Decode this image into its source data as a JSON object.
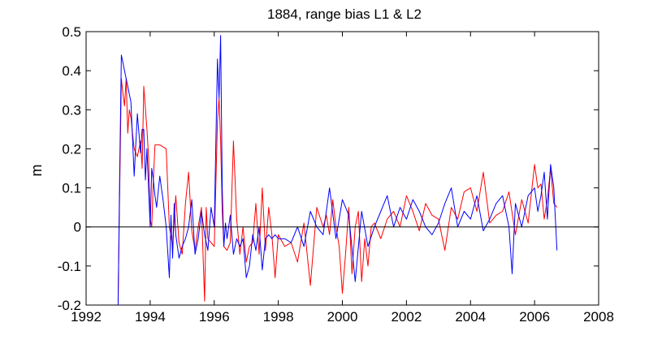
{
  "chart_data": {
    "type": "line",
    "title": "1884, range bias L1 & L2",
    "xlabel": "",
    "ylabel": "m",
    "xlim": [
      1992,
      2008
    ],
    "ylim": [
      -0.2,
      0.5
    ],
    "x_ticks": [
      "1992",
      "1994",
      "1996",
      "1998",
      "2000",
      "2002",
      "2004",
      "2006",
      "2008"
    ],
    "y_ticks": [
      "-0.2",
      "-0.1",
      "0",
      "0.1",
      "0.2",
      "0.3",
      "0.4",
      "0.5"
    ],
    "grid": false,
    "legend": "none",
    "reference_line": 0,
    "series": [
      {
        "color": "#ff0000",
        "x": [
          1993.0,
          1993.05,
          1993.1,
          1993.15,
          1993.2,
          1993.25,
          1993.3,
          1993.35,
          1993.4,
          1993.5,
          1993.6,
          1993.7,
          1993.75,
          1993.8,
          1993.9,
          1993.95,
          1994.0,
          1994.05,
          1994.1,
          1994.15,
          1994.2,
          1994.3,
          1994.5,
          1994.6,
          1994.7,
          1994.8,
          1994.9,
          1995.0,
          1995.1,
          1995.2,
          1995.3,
          1995.4,
          1995.5,
          1995.6,
          1995.7,
          1995.75,
          1995.8,
          1995.9,
          1996.0,
          1996.1,
          1996.15,
          1996.2,
          1996.25,
          1996.3,
          1996.4,
          1996.5,
          1996.6,
          1996.7,
          1996.8,
          1996.9,
          1997.0,
          1997.1,
          1997.2,
          1997.3,
          1997.4,
          1997.5,
          1997.6,
          1997.7,
          1997.8,
          1997.9,
          1998.0,
          1998.2,
          1998.4,
          1998.6,
          1998.8,
          1999.0,
          1999.2,
          1999.4,
          1999.5,
          1999.6,
          1999.7,
          1999.8,
          1999.9,
          2000.0,
          2000.1,
          2000.2,
          2000.3,
          2000.4,
          2000.5,
          2000.6,
          2000.7,
          2000.8,
          2000.9,
          2001.0,
          2001.2,
          2001.4,
          2001.6,
          2001.8,
          2002.0,
          2002.2,
          2002.4,
          2002.6,
          2002.8,
          2003.0,
          2003.2,
          2003.4,
          2003.6,
          2003.8,
          2004.0,
          2004.2,
          2004.4,
          2004.6,
          2004.8,
          2005.0,
          2005.2,
          2005.4,
          2005.6,
          2005.8,
          2006.0,
          2006.1,
          2006.2,
          2006.3,
          2006.4,
          2006.5,
          2006.6,
          2006.7
        ],
        "y": [
          -0.19,
          0.1,
          0.38,
          0.34,
          0.31,
          0.38,
          0.24,
          0.3,
          0.28,
          0.2,
          0.18,
          0.22,
          0.15,
          0.36,
          0.25,
          0.18,
          0.02,
          0.0,
          0.12,
          0.21,
          0.21,
          0.21,
          0.2,
          0.0,
          -0.05,
          0.08,
          -0.04,
          -0.07,
          0.06,
          0.14,
          -0.01,
          -0.06,
          0.0,
          0.05,
          -0.19,
          0.05,
          -0.03,
          -0.04,
          -0.05,
          0.27,
          0.33,
          0.22,
          0.04,
          -0.05,
          -0.06,
          -0.04,
          0.22,
          0.02,
          -0.07,
          0.0,
          -0.09,
          -0.05,
          -0.04,
          0.06,
          -0.07,
          0.1,
          -0.06,
          0.05,
          -0.02,
          -0.13,
          -0.02,
          -0.05,
          -0.04,
          -0.09,
          0.01,
          -0.15,
          0.05,
          0.0,
          0.03,
          -0.02,
          0.07,
          0.0,
          -0.05,
          -0.17,
          -0.07,
          0.05,
          -0.12,
          0.0,
          0.04,
          -0.14,
          -0.03,
          -0.1,
          0.0,
          0.01,
          -0.03,
          0.02,
          0.04,
          0.0,
          0.08,
          0.04,
          -0.01,
          0.06,
          0.03,
          0.02,
          -0.06,
          0.05,
          0.02,
          0.09,
          0.1,
          0.04,
          0.14,
          0.01,
          0.03,
          0.04,
          0.09,
          -0.02,
          0.07,
          0.01,
          0.16,
          0.1,
          0.11,
          0.02,
          0.07,
          0.15,
          0.06,
          0.05
        ]
      },
      {
        "color": "#0000ff",
        "x": [
          1993.0,
          1993.05,
          1993.1,
          1993.15,
          1993.2,
          1993.25,
          1993.3,
          1993.35,
          1993.4,
          1993.5,
          1993.6,
          1993.7,
          1993.75,
          1993.8,
          1993.85,
          1993.9,
          1993.95,
          1994.0,
          1994.05,
          1994.1,
          1994.15,
          1994.2,
          1994.3,
          1994.4,
          1994.5,
          1994.6,
          1994.65,
          1994.7,
          1994.75,
          1994.8,
          1994.9,
          1995.0,
          1995.1,
          1995.2,
          1995.3,
          1995.4,
          1995.5,
          1995.6,
          1995.7,
          1995.8,
          1995.9,
          1996.0,
          1996.1,
          1996.15,
          1996.2,
          1996.25,
          1996.3,
          1996.35,
          1996.4,
          1996.5,
          1996.6,
          1996.7,
          1996.8,
          1996.9,
          1997.0,
          1997.1,
          1997.2,
          1997.3,
          1997.4,
          1997.5,
          1997.6,
          1997.7,
          1997.8,
          1997.9,
          1998.0,
          1998.2,
          1998.4,
          1998.6,
          1998.8,
          1999.0,
          1999.2,
          1999.4,
          1999.6,
          1999.8,
          2000.0,
          2000.2,
          2000.4,
          2000.6,
          2000.8,
          2001.0,
          2001.2,
          2001.4,
          2001.6,
          2001.8,
          2002.0,
          2002.2,
          2002.4,
          2002.6,
          2002.8,
          2003.0,
          2003.2,
          2003.4,
          2003.6,
          2003.8,
          2004.0,
          2004.2,
          2004.4,
          2004.6,
          2004.8,
          2005.0,
          2005.2,
          2005.3,
          2005.4,
          2005.6,
          2005.8,
          2006.0,
          2006.1,
          2006.2,
          2006.3,
          2006.4,
          2006.5,
          2006.6,
          2006.7
        ],
        "y": [
          -0.2,
          0.14,
          0.44,
          0.42,
          0.4,
          0.38,
          0.36,
          0.34,
          0.32,
          0.13,
          0.29,
          0.19,
          0.25,
          0.25,
          0.12,
          0.2,
          0.1,
          0.0,
          0.15,
          0.12,
          0.08,
          0.05,
          0.13,
          0.07,
          0.0,
          -0.13,
          0.03,
          -0.08,
          0.06,
          -0.02,
          -0.08,
          -0.05,
          -0.03,
          0.0,
          0.07,
          -0.07,
          -0.03,
          0.04,
          -0.02,
          -0.06,
          0.05,
          0.0,
          0.43,
          0.33,
          0.49,
          0.1,
          -0.05,
          0.01,
          -0.03,
          0.03,
          -0.07,
          -0.03,
          -0.05,
          -0.03,
          -0.13,
          -0.1,
          -0.02,
          -0.06,
          0.0,
          -0.11,
          -0.03,
          -0.02,
          -0.03,
          -0.02,
          -0.03,
          -0.03,
          -0.04,
          0.0,
          -0.05,
          0.04,
          0.0,
          -0.02,
          0.1,
          -0.03,
          0.07,
          0.03,
          -0.14,
          0.04,
          -0.05,
          0.0,
          0.04,
          0.08,
          0.0,
          0.05,
          0.02,
          0.07,
          0.04,
          0.0,
          -0.02,
          0.01,
          0.06,
          0.1,
          0.0,
          0.04,
          0.02,
          0.08,
          -0.01,
          0.02,
          0.06,
          0.08,
          0.0,
          -0.12,
          0.06,
          0.0,
          0.08,
          0.1,
          0.04,
          0.08,
          0.14,
          0.02,
          0.16,
          0.1,
          -0.06
        ]
      }
    ]
  }
}
